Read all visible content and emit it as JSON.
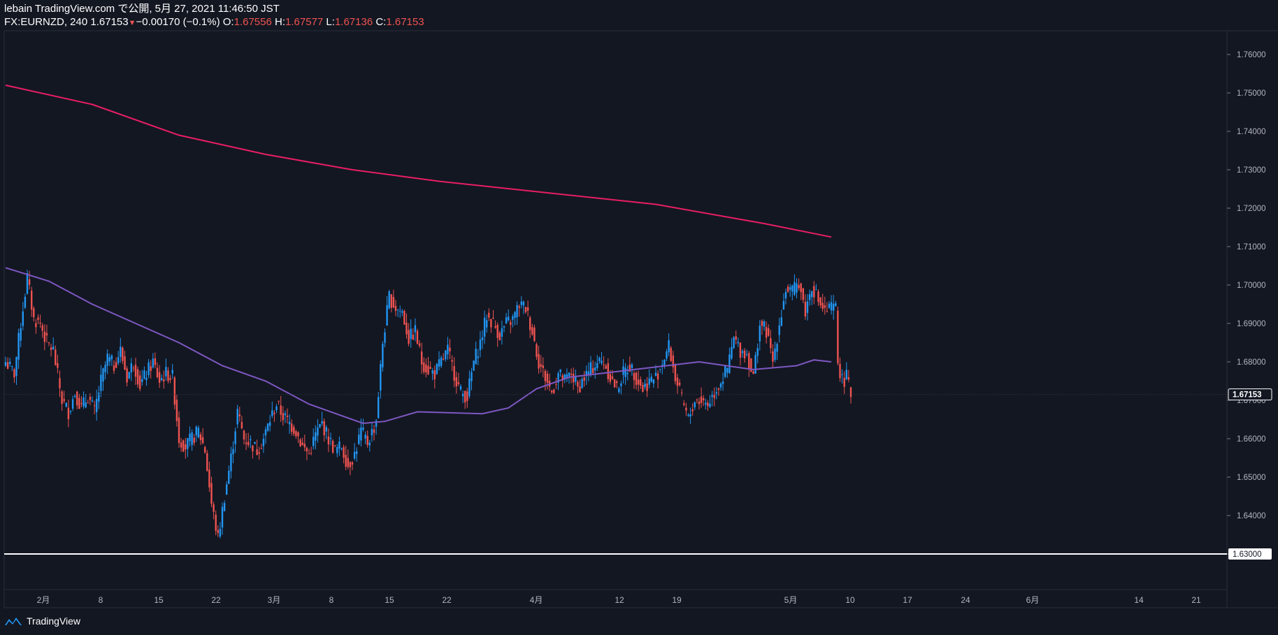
{
  "header": {
    "line1": "lebain TradingView.com で公開, 5月 27, 2021 11:46:50 JST",
    "symbol": "FX:EURNZD, 240",
    "last": "1.67153",
    "change": "−0.00170 (−0.1%)",
    "o_label": "O:",
    "o": "1.67556",
    "h_label": "H:",
    "h": "1.67577",
    "l_label": "L:",
    "l": "1.67136",
    "c_label": "C:",
    "c": "1.67153"
  },
  "footer": {
    "brand": "TradingView",
    "icon": "tradingview-logo-icon"
  },
  "colors": {
    "bg": "#131722",
    "up": "#2196f3",
    "down": "#ef5350",
    "ma_long": "#e91e63",
    "ma_short": "#7e57c2",
    "level": "#ffffff",
    "axis": "#2a2e39"
  },
  "chart_data": {
    "type": "candlestick",
    "symbol": "FX:EURNZD",
    "timeframe": "240",
    "ylim": [
      1.62,
      1.765
    ],
    "y_ticks": [
      "1.76000",
      "1.75000",
      "1.74000",
      "1.73000",
      "1.72000",
      "1.71000",
      "1.70000",
      "1.69000",
      "1.68000",
      "1.67000",
      "1.66000",
      "1.65000",
      "1.64000",
      "1.63000"
    ],
    "x_ticks": [
      "2月",
      "8",
      "15",
      "22",
      "3月",
      "8",
      "15",
      "22",
      "4月",
      "12",
      "19",
      "5月",
      "10",
      "17",
      "24",
      "6月",
      "14",
      "21"
    ],
    "last_price_label": "1.67153",
    "horizontal_line": 1.63,
    "horizontal_line_label": "1.63000",
    "price_path": [
      [
        0,
        1.68
      ],
      [
        4,
        1.677
      ],
      [
        7,
        1.69
      ],
      [
        10,
        1.702
      ],
      [
        13,
        1.691
      ],
      [
        16,
        1.69
      ],
      [
        19,
        1.685
      ],
      [
        22,
        1.683
      ],
      [
        26,
        1.67
      ],
      [
        29,
        1.667
      ],
      [
        32,
        1.672
      ],
      [
        35,
        1.668
      ],
      [
        38,
        1.671
      ],
      [
        41,
        1.667
      ],
      [
        44,
        1.675
      ],
      [
        47,
        1.681
      ],
      [
        50,
        1.679
      ],
      [
        53,
        1.683
      ],
      [
        56,
        1.676
      ],
      [
        59,
        1.68
      ],
      [
        62,
        1.674
      ],
      [
        65,
        1.677
      ],
      [
        68,
        1.68
      ],
      [
        71,
        1.675
      ],
      [
        74,
        1.677
      ],
      [
        77,
        1.676
      ],
      [
        80,
        1.66
      ],
      [
        83,
        1.658
      ],
      [
        86,
        1.66
      ],
      [
        89,
        1.662
      ],
      [
        92,
        1.657
      ],
      [
        95,
        1.643
      ],
      [
        98,
        1.634
      ],
      [
        101,
        1.645
      ],
      [
        104,
        1.655
      ],
      [
        107,
        1.667
      ],
      [
        110,
        1.66
      ],
      [
        113,
        1.659
      ],
      [
        116,
        1.657
      ],
      [
        119,
        1.66
      ],
      [
        122,
        1.665
      ],
      [
        125,
        1.669
      ],
      [
        128,
        1.666
      ],
      [
        131,
        1.664
      ],
      [
        134,
        1.662
      ],
      [
        137,
        1.658
      ],
      [
        140,
        1.656
      ],
      [
        143,
        1.661
      ],
      [
        146,
        1.664
      ],
      [
        149,
        1.66
      ],
      [
        152,
        1.657
      ],
      [
        155,
        1.658
      ],
      [
        158,
        1.653
      ],
      [
        161,
        1.656
      ],
      [
        164,
        1.662
      ],
      [
        167,
        1.659
      ],
      [
        170,
        1.663
      ],
      [
        171,
        1.665
      ],
      [
        174,
        1.685
      ],
      [
        177,
        1.697
      ],
      [
        180,
        1.694
      ],
      [
        183,
        1.693
      ],
      [
        186,
        1.686
      ],
      [
        189,
        1.688
      ],
      [
        192,
        1.68
      ],
      [
        195,
        1.678
      ],
      [
        198,
        1.677
      ],
      [
        201,
        1.68
      ],
      [
        204,
        1.683
      ],
      [
        207,
        1.677
      ],
      [
        210,
        1.672
      ],
      [
        213,
        1.671
      ],
      [
        216,
        1.68
      ],
      [
        219,
        1.685
      ],
      [
        222,
        1.692
      ],
      [
        225,
        1.69
      ],
      [
        228,
        1.687
      ],
      [
        231,
        1.69
      ],
      [
        234,
        1.691
      ],
      [
        237,
        1.695
      ],
      [
        240,
        1.694
      ],
      [
        243,
        1.688
      ],
      [
        246,
        1.68
      ],
      [
        249,
        1.676
      ],
      [
        252,
        1.672
      ],
      [
        255,
        1.677
      ],
      [
        258,
        1.675
      ],
      [
        261,
        1.677
      ],
      [
        264,
        1.673
      ],
      [
        267,
        1.676
      ],
      [
        270,
        1.678
      ],
      [
        273,
        1.68
      ],
      [
        276,
        1.68
      ],
      [
        279,
        1.676
      ],
      [
        282,
        1.673
      ],
      [
        285,
        1.677
      ],
      [
        288,
        1.679
      ],
      [
        291,
        1.676
      ],
      [
        294,
        1.673
      ],
      [
        297,
        1.675
      ],
      [
        300,
        1.676
      ],
      [
        303,
        1.68
      ],
      [
        306,
        1.684
      ],
      [
        309,
        1.676
      ],
      [
        312,
        1.67
      ],
      [
        315,
        1.665
      ],
      [
        318,
        1.67
      ],
      [
        321,
        1.67
      ],
      [
        324,
        1.669
      ],
      [
        327,
        1.672
      ],
      [
        330,
        1.675
      ],
      [
        333,
        1.678
      ],
      [
        336,
        1.686
      ],
      [
        339,
        1.683
      ],
      [
        342,
        1.682
      ],
      [
        345,
        1.676
      ],
      [
        348,
        1.69
      ],
      [
        351,
        1.688
      ],
      [
        354,
        1.68
      ],
      [
        357,
        1.69
      ],
      [
        360,
        1.699
      ],
      [
        363,
        1.698
      ],
      [
        366,
        1.701
      ],
      [
        369,
        1.693
      ],
      [
        372,
        1.7
      ],
      [
        375,
        1.696
      ],
      [
        378,
        1.693
      ],
      [
        381,
        1.694
      ],
      [
        383,
        1.694
      ],
      [
        384,
        1.68
      ],
      [
        386,
        1.675
      ],
      [
        388,
        1.676
      ],
      [
        390,
        1.6715
      ]
    ],
    "series": [
      {
        "name": "",
        "color": "#e91e63",
        "kind": "line",
        "points": [
          [
            0,
            1.752
          ],
          [
            40,
            1.747
          ],
          [
            80,
            1.739
          ],
          [
            120,
            1.734
          ],
          [
            160,
            1.73
          ],
          [
            200,
            1.727
          ],
          [
            250,
            1.724
          ],
          [
            300,
            1.721
          ],
          [
            350,
            1.716
          ],
          [
            381,
            1.7125
          ]
        ]
      },
      {
        "name": "",
        "color": "#7e57c2",
        "kind": "line",
        "points": [
          [
            0,
            1.7045
          ],
          [
            20,
            1.701
          ],
          [
            40,
            1.695
          ],
          [
            60,
            1.69
          ],
          [
            80,
            1.685
          ],
          [
            100,
            1.679
          ],
          [
            120,
            1.675
          ],
          [
            140,
            1.669
          ],
          [
            165,
            1.664
          ],
          [
            175,
            1.6645
          ],
          [
            190,
            1.667
          ],
          [
            220,
            1.6665
          ],
          [
            232,
            1.668
          ],
          [
            245,
            1.673
          ],
          [
            260,
            1.676
          ],
          [
            290,
            1.678
          ],
          [
            320,
            1.68
          ],
          [
            345,
            1.678
          ],
          [
            365,
            1.679
          ],
          [
            373,
            1.6805
          ],
          [
            381,
            1.68
          ]
        ]
      }
    ]
  }
}
